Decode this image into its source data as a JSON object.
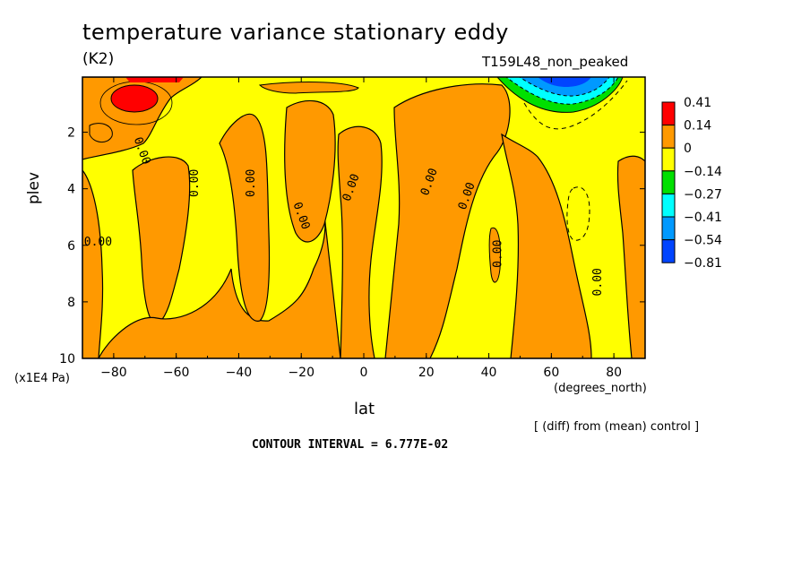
{
  "chart_data": {
    "type": "heatmap",
    "title": "temperature variance stationary eddy",
    "units": "(K2)",
    "run_label": "T159L48_non_peaked",
    "xlabel": "lat",
    "x_units": "(degrees_north)",
    "ylabel": "plev",
    "y_units": "(x1E4 Pa)",
    "x_ticks": [
      -80,
      -60,
      -40,
      -20,
      0,
      20,
      40,
      60,
      80
    ],
    "x_tick_labels": [
      "−80",
      "−60",
      "−40",
      "−20",
      "0",
      "20",
      "40",
      "60",
      "80"
    ],
    "xlim": [
      -90,
      90
    ],
    "y_ticks": [
      2,
      4,
      6,
      8,
      10
    ],
    "y_tick_labels": [
      "2",
      "4",
      "6",
      "8",
      "10"
    ],
    "ylim": [
      0.05,
      10
    ],
    "y_inverted": true,
    "colorbar": {
      "levels": [
        "0.41",
        "0.14",
        "0",
        "−0.14",
        "−0.27",
        "−0.41",
        "−0.54",
        "−0.81"
      ],
      "colors": [
        "#ff0000",
        "#ff9900",
        "#ffff00",
        "#00e000",
        "#00ffff",
        "#0099ff",
        "#0044ff"
      ]
    },
    "contour_labels": [
      "0.00",
      "0.00",
      "0.00",
      "0.00",
      "0.00",
      "0.00",
      "0.00",
      "0.00",
      "0.00",
      "0.00"
    ],
    "regions": [
      {
        "level": "positive",
        "color": "#ff9900",
        "lat_range": [
          -90,
          -82
        ],
        "plev_range": [
          3,
          10
        ]
      },
      {
        "level": "positive",
        "color": "#ff9900",
        "lat_range": [
          -80,
          -55
        ],
        "plev_range": [
          0.05,
          2.5
        ]
      },
      {
        "level": "max",
        "color": "#ff0000",
        "lat_center": -75,
        "plev_center": 0.7
      },
      {
        "level": "positive",
        "color": "#ff9900",
        "lat_range": [
          -67,
          -58
        ],
        "plev_range": [
          3,
          8.5
        ]
      },
      {
        "level": "positive",
        "color": "#ff9900",
        "lat_range": [
          -48,
          -36
        ],
        "plev_range": [
          2,
          8.5
        ]
      },
      {
        "level": "positive",
        "color": "#ff9900",
        "lat_range": [
          -28,
          -8
        ],
        "plev_range": [
          1.5,
          7
        ]
      },
      {
        "level": "positive",
        "color": "#ff9900",
        "lat_range": [
          0,
          10
        ],
        "plev_range": [
          1.5,
          10
        ]
      },
      {
        "level": "positive",
        "color": "#ff9900",
        "lat_range": [
          10,
          42
        ],
        "plev_range": [
          0.05,
          10
        ]
      },
      {
        "level": "negative",
        "color": "#0044ff",
        "lat_center": 63,
        "plev_center": 0.3
      },
      {
        "level": "positive",
        "color": "#ff9900",
        "lat_range": [
          75,
          90
        ],
        "plev_range": [
          3,
          10
        ]
      }
    ],
    "grid": false
  },
  "annotations": {
    "diff_note": "[ (diff) from (mean) control ]",
    "contour_interval": "CONTOUR INTERVAL = 6.777E-02"
  }
}
